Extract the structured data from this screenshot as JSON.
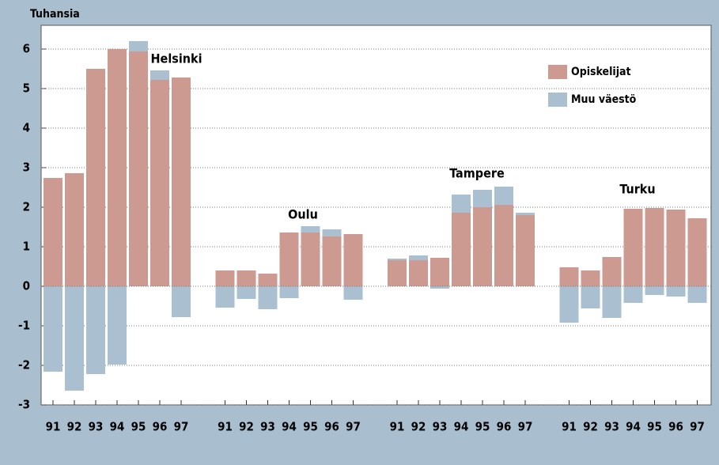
{
  "chart_data": {
    "type": "grouped_stacked_bar",
    "y_axis_label": "Tuhansia",
    "groups": [
      "Helsinki",
      "Oulu",
      "Tampere",
      "Turku"
    ],
    "categories": [
      "91",
      "92",
      "93",
      "94",
      "95",
      "96",
      "97",
      "91",
      "92",
      "93",
      "94",
      "95",
      "96",
      "97",
      "91",
      "92",
      "93",
      "94",
      "95",
      "96",
      "97",
      "91",
      "92",
      "93",
      "94",
      "95",
      "96",
      "97"
    ],
    "series": [
      {
        "name": "Opiskelijat",
        "color": "#cc9a90",
        "values": [
          2.74,
          2.86,
          5.5,
          6.0,
          5.94,
          5.22,
          5.28,
          0.4,
          0.4,
          0.32,
          1.36,
          1.36,
          1.26,
          1.32,
          0.66,
          0.66,
          0.72,
          1.86,
          2.0,
          2.06,
          1.8,
          0.48,
          0.4,
          0.74,
          1.96,
          1.98,
          1.94,
          1.72
        ]
      },
      {
        "name": "Muu väestö",
        "color": "#aac0d0",
        "values": [
          -2.16,
          -2.64,
          -2.22,
          -1.98,
          0.26,
          0.24,
          -0.78,
          -0.54,
          -0.32,
          -0.58,
          -0.3,
          0.16,
          0.18,
          -0.34,
          0.04,
          0.12,
          -0.06,
          0.46,
          0.44,
          0.46,
          0.06,
          -0.92,
          -0.56,
          -0.8,
          -0.42,
          -0.22,
          -0.26,
          -0.42
        ]
      }
    ],
    "ylim": [
      -3,
      6.6
    ],
    "yticks": [
      -3,
      -2,
      -1,
      0,
      1,
      2,
      3,
      4,
      5,
      6
    ],
    "grid": true,
    "legend": "upper right"
  }
}
